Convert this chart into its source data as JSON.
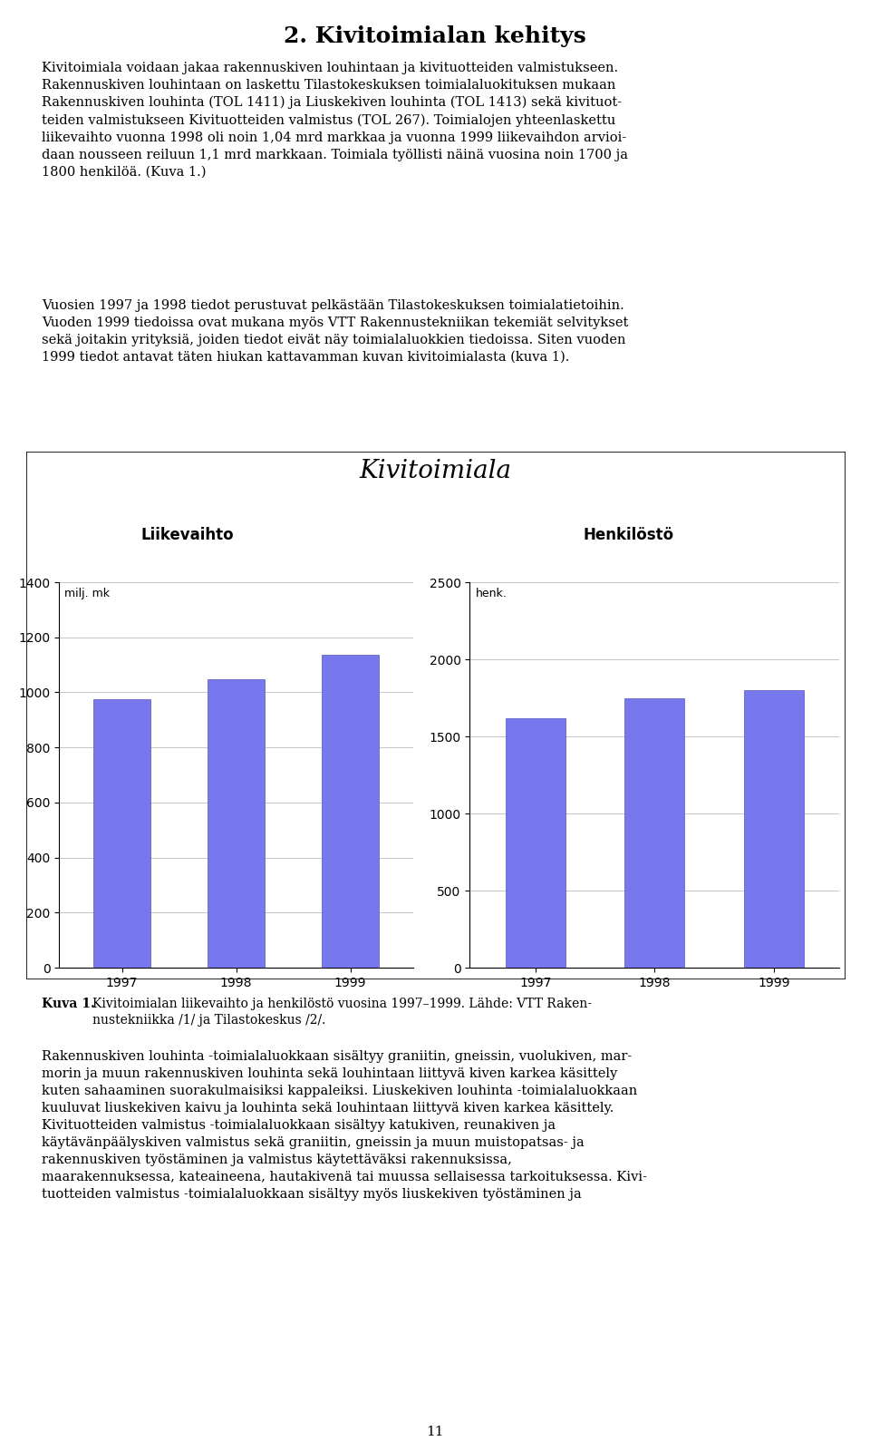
{
  "title": "Kivitoimiala",
  "left_subtitle": "Liikevaihto",
  "right_subtitle": "Henkilöstö",
  "left_unit": "milj. mk",
  "right_unit": "henk.",
  "years": [
    "1997",
    "1998",
    "1999"
  ],
  "liikevaihto": [
    975,
    1048,
    1135
  ],
  "henkilosto": [
    1620,
    1750,
    1800
  ],
  "left_ylim": [
    0,
    1400
  ],
  "right_ylim": [
    0,
    2500
  ],
  "left_yticks": [
    0,
    200,
    400,
    600,
    800,
    1000,
    1200,
    1400
  ],
  "right_yticks": [
    0,
    500,
    1000,
    1500,
    2000,
    2500
  ],
  "bar_color": "#7777EE",
  "bar_edgecolor": "#5555BB",
  "bg_color": "#FFFFFF",
  "grid_color": "#BBBBBB",
  "page_title": "2. Kivitoimialan kehitys",
  "page_number": "11"
}
